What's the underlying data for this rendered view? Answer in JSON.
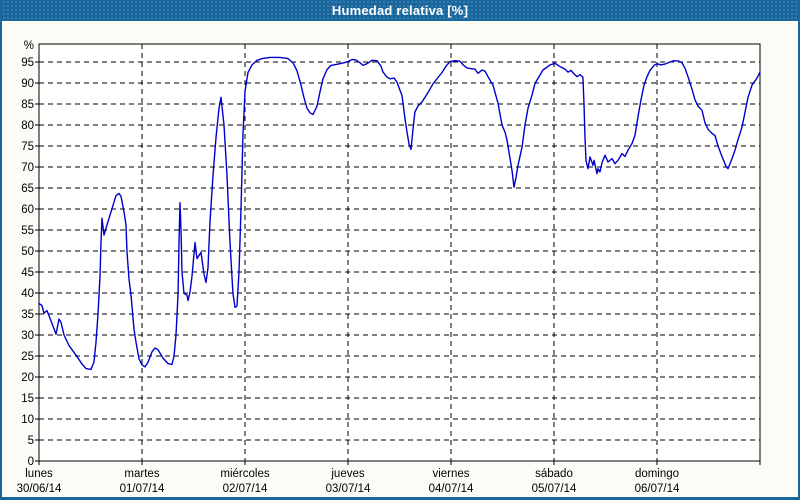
{
  "window": {
    "title": "Humedad relativa [%]",
    "title_bar_color": "#1a679e",
    "border_color": "#1a679e"
  },
  "chart_data": {
    "type": "line",
    "title": "Humedad relativa [%]",
    "ylabel": "%",
    "xlabel": "",
    "ylim": [
      0,
      99
    ],
    "grid": true,
    "legend": "none",
    "line_color": "#0000cc",
    "axis_color": "#000000",
    "plot_bg": "#ffffff",
    "y_ticks": [
      0,
      5,
      10,
      15,
      20,
      25,
      30,
      35,
      40,
      45,
      50,
      55,
      60,
      65,
      70,
      75,
      80,
      85,
      90,
      95
    ],
    "x_axis": {
      "unit": "day",
      "days": [
        {
          "name": "lunes",
          "date": "30/06/14"
        },
        {
          "name": "martes",
          "date": "01/07/14"
        },
        {
          "name": "miércoles",
          "date": "02/07/14"
        },
        {
          "name": "jueves",
          "date": "03/07/14"
        },
        {
          "name": "viernes",
          "date": "04/07/14"
        },
        {
          "name": "sábado",
          "date": "05/07/14"
        },
        {
          "name": "domingo",
          "date": "06/07/14"
        }
      ]
    },
    "series": [
      {
        "name": "Humedad relativa",
        "unit": "%",
        "x_unit": "days_since_start",
        "points": [
          [
            0,
            37.5
          ],
          [
            0.029,
            37
          ],
          [
            0.049,
            35.2
          ],
          [
            0.078,
            35.8
          ],
          [
            0.107,
            34
          ],
          [
            0.146,
            31.5
          ],
          [
            0.165,
            30.2
          ],
          [
            0.194,
            33.8
          ],
          [
            0.214,
            33
          ],
          [
            0.243,
            30
          ],
          [
            0.291,
            27.5
          ],
          [
            0.359,
            25.2
          ],
          [
            0.417,
            23.1
          ],
          [
            0.456,
            22
          ],
          [
            0.505,
            21.8
          ],
          [
            0.534,
            23.6
          ],
          [
            0.553,
            28.3
          ],
          [
            0.573,
            35
          ],
          [
            0.592,
            44
          ],
          [
            0.602,
            52
          ],
          [
            0.612,
            57.8
          ],
          [
            0.631,
            53.8
          ],
          [
            0.66,
            56.2
          ],
          [
            0.699,
            59.3
          ],
          [
            0.748,
            63.2
          ],
          [
            0.777,
            63.7
          ],
          [
            0.796,
            63
          ],
          [
            0.825,
            59.3
          ],
          [
            0.845,
            56.2
          ],
          [
            0.854,
            49.8
          ],
          [
            0.874,
            43.3
          ],
          [
            0.893,
            39.5
          ],
          [
            0.922,
            31.4
          ],
          [
            0.942,
            28.3
          ],
          [
            0.971,
            24.3
          ],
          [
            1,
            22.9
          ],
          [
            1.029,
            22.4
          ],
          [
            1.058,
            23.5
          ],
          [
            1.097,
            26
          ],
          [
            1.126,
            26.9
          ],
          [
            1.155,
            26.5
          ],
          [
            1.204,
            24.5
          ],
          [
            1.252,
            23.2
          ],
          [
            1.291,
            23
          ],
          [
            1.311,
            25
          ],
          [
            1.33,
            30
          ],
          [
            1.35,
            40
          ],
          [
            1.359,
            52
          ],
          [
            1.369,
            61.5
          ],
          [
            1.379,
            55
          ],
          [
            1.388,
            45
          ],
          [
            1.408,
            39.9
          ],
          [
            1.437,
            39.5
          ],
          [
            1.447,
            38.2
          ],
          [
            1.466,
            40.2
          ],
          [
            1.485,
            44
          ],
          [
            1.515,
            52
          ],
          [
            1.534,
            48.2
          ],
          [
            1.573,
            49.7
          ],
          [
            1.602,
            44.5
          ],
          [
            1.621,
            42.5
          ],
          [
            1.641,
            46
          ],
          [
            1.66,
            57
          ],
          [
            1.689,
            68
          ],
          [
            1.718,
            77
          ],
          [
            1.748,
            84
          ],
          [
            1.767,
            86.6
          ],
          [
            1.796,
            80
          ],
          [
            1.825,
            68
          ],
          [
            1.854,
            52
          ],
          [
            1.883,
            40
          ],
          [
            1.903,
            36.6
          ],
          [
            1.922,
            36.9
          ],
          [
            1.942,
            45
          ],
          [
            1.961,
            60
          ],
          [
            1.981,
            78
          ],
          [
            2,
            88
          ],
          [
            2.029,
            92.5
          ],
          [
            2.068,
            94.3
          ],
          [
            2.117,
            95.4
          ],
          [
            2.165,
            95.8
          ],
          [
            2.243,
            96.1
          ],
          [
            2.34,
            96.1
          ],
          [
            2.417,
            95.8
          ],
          [
            2.466,
            94.8
          ],
          [
            2.505,
            92.9
          ],
          [
            2.544,
            89.5
          ],
          [
            2.573,
            86.5
          ],
          [
            2.602,
            84
          ],
          [
            2.631,
            82.9
          ],
          [
            2.66,
            82.5
          ],
          [
            2.699,
            84.5
          ],
          [
            2.728,
            87.9
          ],
          [
            2.757,
            91
          ],
          [
            2.796,
            93.2
          ],
          [
            2.835,
            94.2
          ],
          [
            2.903,
            94.5
          ],
          [
            2.961,
            94.8
          ],
          [
            3,
            95.1
          ],
          [
            3.039,
            95.6
          ],
          [
            3.078,
            95.5
          ],
          [
            3.117,
            94.8
          ],
          [
            3.146,
            94.2
          ],
          [
            3.184,
            94.6
          ],
          [
            3.233,
            95.4
          ],
          [
            3.282,
            95.3
          ],
          [
            3.32,
            94
          ],
          [
            3.34,
            92.6
          ],
          [
            3.379,
            91.4
          ],
          [
            3.408,
            91
          ],
          [
            3.447,
            91.2
          ],
          [
            3.476,
            90.2
          ],
          [
            3.495,
            88.9
          ],
          [
            3.524,
            87
          ],
          [
            3.553,
            81.5
          ],
          [
            3.573,
            78.3
          ],
          [
            3.592,
            75.5
          ],
          [
            3.612,
            74.2
          ],
          [
            3.631,
            79
          ],
          [
            3.65,
            83.1
          ],
          [
            3.68,
            84.5
          ],
          [
            3.718,
            85.5
          ],
          [
            3.767,
            87.3
          ],
          [
            3.825,
            89.8
          ],
          [
            3.874,
            91.3
          ],
          [
            3.913,
            92.5
          ],
          [
            3.951,
            94
          ],
          [
            3.99,
            95.1
          ],
          [
            4.039,
            95.3
          ],
          [
            4.087,
            95.2
          ],
          [
            4.117,
            94.3
          ],
          [
            4.155,
            93.6
          ],
          [
            4.194,
            93.4
          ],
          [
            4.233,
            93.3
          ],
          [
            4.262,
            92.3
          ],
          [
            4.301,
            93.1
          ],
          [
            4.33,
            92.8
          ],
          [
            4.359,
            91.5
          ],
          [
            4.408,
            89.5
          ],
          [
            4.456,
            85.2
          ],
          [
            4.495,
            80
          ],
          [
            4.524,
            78.3
          ],
          [
            4.544,
            76.4
          ],
          [
            4.573,
            72.1
          ],
          [
            4.592,
            69.2
          ],
          [
            4.612,
            65.2
          ],
          [
            4.631,
            67.5
          ],
          [
            4.65,
            70.4
          ],
          [
            4.689,
            74.7
          ],
          [
            4.718,
            80
          ],
          [
            4.748,
            84
          ],
          [
            4.786,
            87.1
          ],
          [
            4.816,
            89.9
          ],
          [
            4.864,
            91.9
          ],
          [
            4.893,
            93.1
          ],
          [
            4.961,
            94.3
          ],
          [
            5.01,
            94.7
          ],
          [
            5.058,
            93.9
          ],
          [
            5.107,
            93.3
          ],
          [
            5.136,
            92.6
          ],
          [
            5.165,
            93
          ],
          [
            5.194,
            92.2
          ],
          [
            5.223,
            91.5
          ],
          [
            5.252,
            92
          ],
          [
            5.281,
            91.4
          ],
          [
            5.291,
            85
          ],
          [
            5.301,
            77
          ],
          [
            5.311,
            71.5
          ],
          [
            5.33,
            69.6
          ],
          [
            5.35,
            72.4
          ],
          [
            5.379,
            70.4
          ],
          [
            5.388,
            71.6
          ],
          [
            5.417,
            68.4
          ],
          [
            5.427,
            69.6
          ],
          [
            5.446,
            68.8
          ],
          [
            5.466,
            71
          ],
          [
            5.495,
            72.8
          ],
          [
            5.524,
            71.2
          ],
          [
            5.563,
            72
          ],
          [
            5.592,
            70.8
          ],
          [
            5.621,
            71.6
          ],
          [
            5.66,
            73.2
          ],
          [
            5.689,
            72.5
          ],
          [
            5.718,
            74
          ],
          [
            5.757,
            75.6
          ],
          [
            5.786,
            77.6
          ],
          [
            5.816,
            82
          ],
          [
            5.845,
            86
          ],
          [
            5.874,
            89.5
          ],
          [
            5.903,
            91.5
          ],
          [
            5.932,
            93
          ],
          [
            5.971,
            94.2
          ],
          [
            6,
            94.6
          ],
          [
            6.039,
            94.3
          ],
          [
            6.078,
            94.5
          ],
          [
            6.126,
            95
          ],
          [
            6.165,
            95.3
          ],
          [
            6.214,
            95.2
          ],
          [
            6.243,
            94.8
          ],
          [
            6.272,
            93.5
          ],
          [
            6.301,
            91.5
          ],
          [
            6.34,
            88.5
          ],
          [
            6.369,
            86
          ],
          [
            6.398,
            84.5
          ],
          [
            6.437,
            83.5
          ],
          [
            6.466,
            80.5
          ],
          [
            6.495,
            79
          ],
          [
            6.534,
            78
          ],
          [
            6.563,
            77.5
          ],
          [
            6.592,
            75
          ],
          [
            6.631,
            72.5
          ],
          [
            6.67,
            70.2
          ],
          [
            6.689,
            69.6
          ],
          [
            6.728,
            72
          ],
          [
            6.757,
            74
          ],
          [
            6.786,
            76.5
          ],
          [
            6.825,
            79.5
          ],
          [
            6.854,
            83
          ],
          [
            6.883,
            86.5
          ],
          [
            6.922,
            89.5
          ],
          [
            6.951,
            90.5
          ],
          [
            6.971,
            91.2
          ],
          [
            7,
            92.6
          ]
        ]
      }
    ]
  }
}
